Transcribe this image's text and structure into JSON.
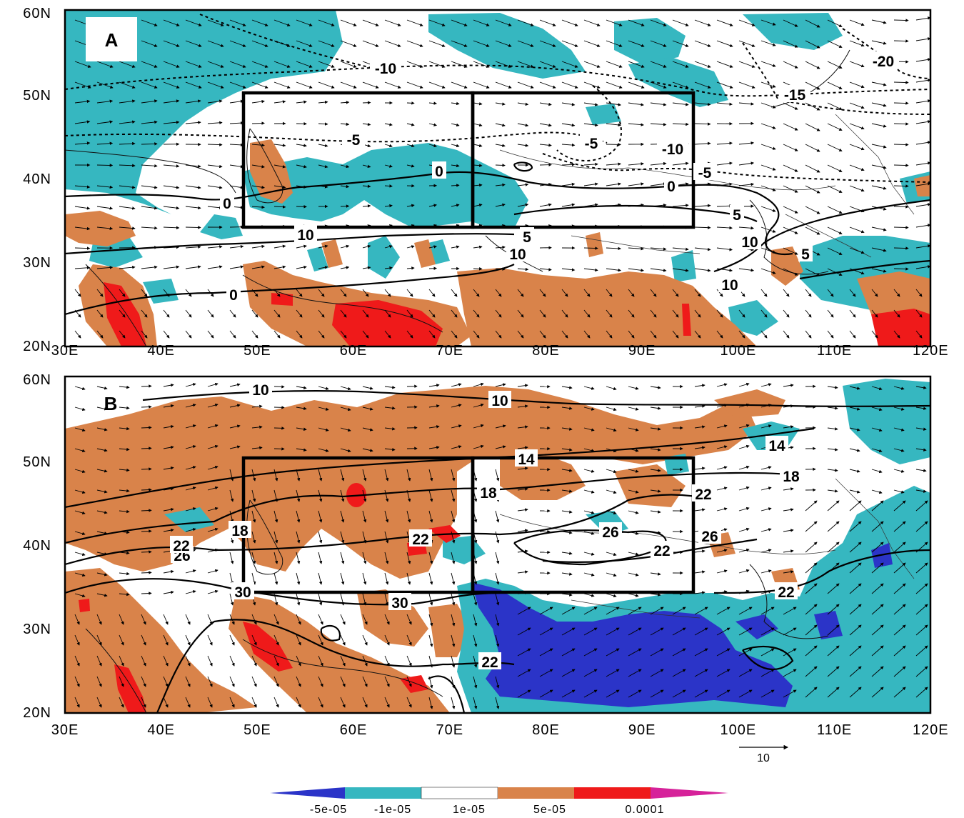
{
  "colors": {
    "strong_negative": "#2b34c8",
    "weak_negative": "#36b7c0",
    "neutral": "#ffffff",
    "weak_positive": "#d9834a",
    "strong_positive": "#ef1a1a",
    "extreme_positive": "#d6229a"
  },
  "axes": {
    "x_ticks": [
      "30E",
      "40E",
      "50E",
      "60E",
      "70E",
      "80E",
      "90E",
      "100E",
      "110E",
      "120E"
    ],
    "y_ticks": [
      "20N",
      "30N",
      "40N",
      "50N",
      "60N"
    ]
  },
  "panels": [
    {
      "letter": "A",
      "contour_labels": [
        "-10",
        "-20",
        "-15",
        "-5",
        "-5",
        "-10",
        "0",
        "0",
        "-5",
        "0",
        "5",
        "5",
        "10",
        "10",
        "10",
        "10",
        "0",
        "5"
      ]
    },
    {
      "letter": "B",
      "contour_labels": [
        "10",
        "10",
        "14",
        "14",
        "18",
        "18",
        "18",
        "22",
        "22",
        "26",
        "26",
        "26",
        "22",
        "22",
        "22",
        "22",
        "30",
        "30"
      ]
    }
  ],
  "vector_legend": {
    "value": "10"
  },
  "colorbar": {
    "labels": [
      "-5e-05",
      "-1e-05",
      "1e-05",
      "5e-05",
      "0.0001"
    ]
  }
}
